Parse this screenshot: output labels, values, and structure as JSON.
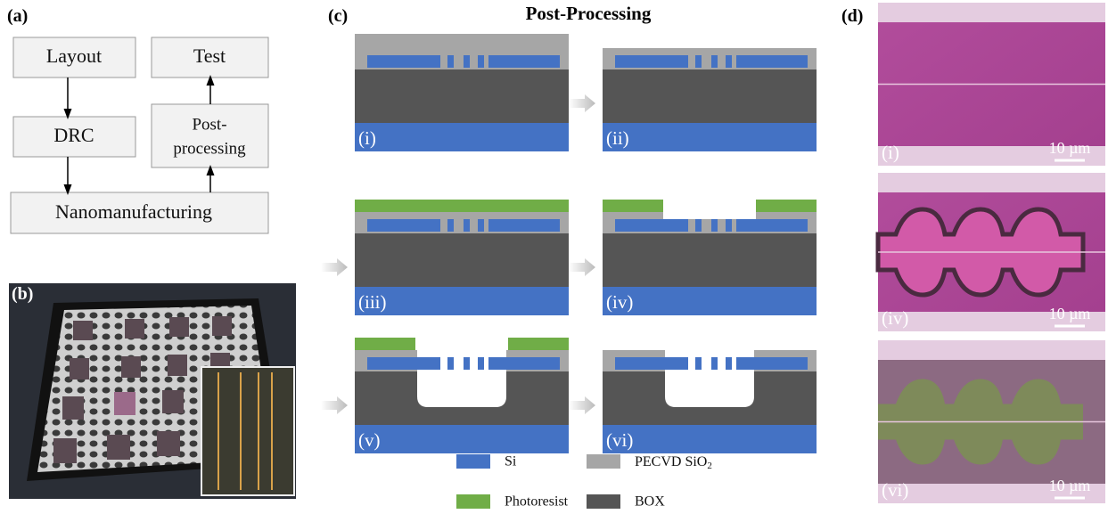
{
  "panels": {
    "a": {
      "label": "(a)",
      "nodes": {
        "layout": "Layout",
        "test": "Test",
        "drc": "DRC",
        "post": [
          "Post-",
          "processing"
        ],
        "nano": "Nanomanufacturing"
      }
    },
    "b": {
      "label": "(b)"
    },
    "c": {
      "label": "(c)",
      "title": "Post-Processing",
      "steps": [
        "(i)",
        "(ii)",
        "(iii)",
        "(iv)",
        "(v)",
        "(vi)"
      ],
      "legend": {
        "si": "Si",
        "photoresist": "Photoresist",
        "oxide": [
          "PECVD SiO",
          "2"
        ],
        "box": "BOX"
      }
    },
    "d": {
      "label": "(d)",
      "images": [
        {
          "label": "(i)",
          "scale": "10 µm"
        },
        {
          "label": "(iv)",
          "scale": "10 µm"
        },
        {
          "label": "(vi)",
          "scale": "10 µm"
        }
      ]
    }
  }
}
